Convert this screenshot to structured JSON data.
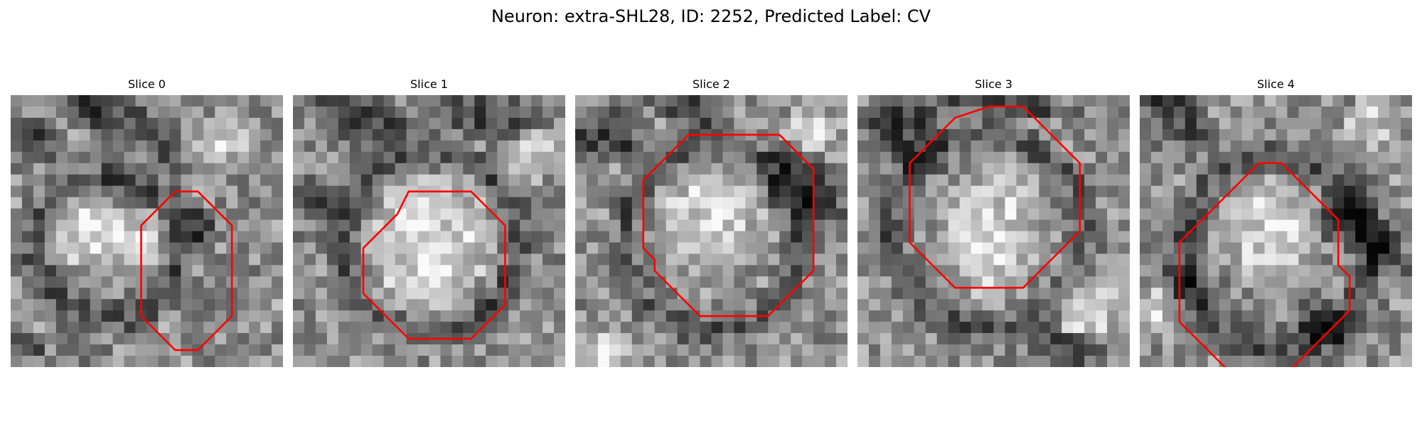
{
  "figure": {
    "title": "Neuron: extra-SHL28, ID: 2252, Predicted Label: CV"
  },
  "panels": [
    {
      "title": "Slice 0"
    },
    {
      "title": "Slice 1"
    },
    {
      "title": "Slice 2"
    },
    {
      "title": "Slice 3"
    },
    {
      "title": "Slice 4"
    }
  ],
  "colors": {
    "background": "#ffffff",
    "contour": "#ff0000"
  }
}
